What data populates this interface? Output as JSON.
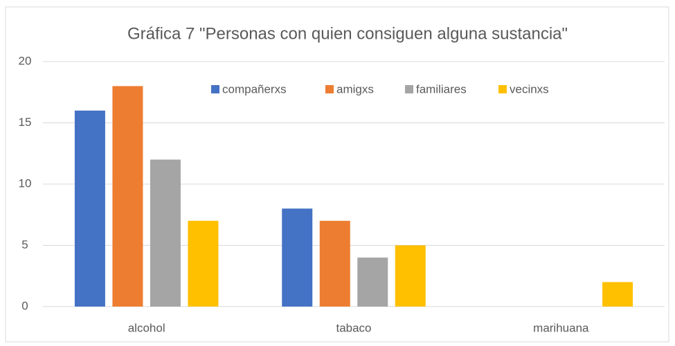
{
  "chart_data": {
    "type": "bar",
    "title": "Gráfica 7 \"Personas con quien consiguen alguna sustancia\"",
    "categories": [
      "alcohol",
      "tabaco",
      "marihuana"
    ],
    "series": [
      {
        "name": "compañerxs",
        "color": "#4472c4",
        "values": [
          16,
          8,
          0
        ]
      },
      {
        "name": "amigxs",
        "color": "#ed7d31",
        "values": [
          18,
          7,
          0
        ]
      },
      {
        "name": "familiares",
        "color": "#a5a5a5",
        "values": [
          12,
          4,
          0
        ]
      },
      {
        "name": "vecinxs",
        "color": "#ffc000",
        "values": [
          7,
          5,
          2
        ]
      }
    ],
    "ylim": [
      0,
      20
    ],
    "yticks": [
      0,
      5,
      10,
      15,
      20
    ],
    "grid": true,
    "legend": "top"
  }
}
